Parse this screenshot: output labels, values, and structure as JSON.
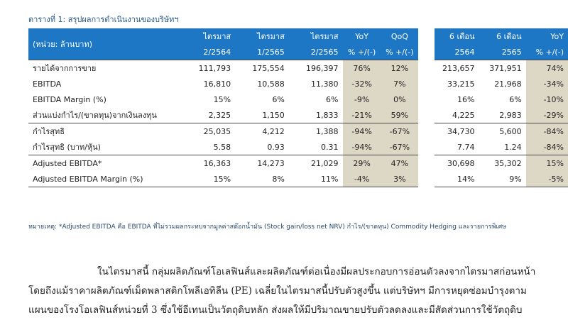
{
  "table_title": "ตารางที่ 1: สรุปผลการดำเนินงานของบริษัทฯ",
  "header": {
    "unit_label": "(หน่วย: ล้านบาท)",
    "columns": [
      {
        "top": "ไตรมาส",
        "bottom": "2/2564"
      },
      {
        "top": "ไตรมาส",
        "bottom": "1/2565"
      },
      {
        "top": "ไตรมาส",
        "bottom": "2/2565"
      },
      {
        "top": "YoY",
        "bottom": "% +/(-)"
      },
      {
        "top": "QoQ",
        "bottom": "% +/(-)"
      },
      {
        "top": "6 เดือน",
        "bottom": "2564"
      },
      {
        "top": "6 เดือน",
        "bottom": "2565"
      },
      {
        "top": "YoY",
        "bottom": "% +/(-)"
      }
    ]
  },
  "rows": [
    {
      "label": "รายได้จากการขาย",
      "values": [
        "111,793",
        "175,554",
        "196,397",
        "76%",
        "12%",
        "213,657",
        "371,951",
        "74%"
      ]
    },
    {
      "label": "EBITDA",
      "values": [
        "16,810",
        "10,588",
        "11,380",
        "-32%",
        "7%",
        "33,215",
        "21,968",
        "-34%"
      ]
    },
    {
      "label": "EBITDA Margin (%)",
      "values": [
        "15%",
        "6%",
        "6%",
        "-9%",
        "0%",
        "16%",
        "6%",
        "-10%"
      ]
    },
    {
      "label": "ส่วนแบ่งกำไร/(ขาดทุน)จากเงินลงทุน",
      "values": [
        "2,325",
        "1,150",
        "1,833",
        "-21%",
        "59%",
        "4,225",
        "2,983",
        "-29%"
      ]
    },
    {
      "label": "กำไรสุทธิ",
      "values": [
        "25,035",
        "4,212",
        "1,388",
        "-94%",
        "-67%",
        "34,730",
        "5,600",
        "-84%"
      ]
    },
    {
      "label": "กำไรสุทธิ (บาท/หุ้น)",
      "values": [
        "5.58",
        "0.93",
        "0.31",
        "-94%",
        "-67%",
        "7.74",
        "1.24",
        "-84%"
      ]
    },
    {
      "label": "Adjusted EBITDA*",
      "values": [
        "16,363",
        "14,273",
        "21,029",
        "29%",
        "47%",
        "30,698",
        "35,302",
        "15%"
      ]
    },
    {
      "label": "Adjusted EBITDA Margin (%)",
      "values": [
        "15%",
        "8%",
        "11%",
        "-4%",
        "3%",
        "14%",
        "9%",
        "-5%"
      ]
    }
  ],
  "footnote": "หมายเหตุ: *Adjusted EBITDA คือ EBITDA ที่ไม่รวมผลกระทบจากมูลค่าสต๊อกน้ำมัน (Stock gain/loss net NRV) กำไร/(ขาดทุน) Commodity Hedging และรายการพิเศษ",
  "paragraph_lines": [
    "ในไตรมาสนี้ กลุ่มผลิตภัณฑ์โอเลฟินส์และผลิตภัณฑ์ต่อเนื่องมีผลประกอบการอ่อนตัวลงจากไตรมาสก่อนหน้า",
    "โดยถึงแม้ราคาผลิตภัณฑ์เม็ดพลาสติกโพลีเอทิลีน (PE) เฉลี่ยในไตรมาสนี้ปรับตัวสูงขึ้น แต่บริษัทฯ มีการหยุดซ่อมบำรุงตาม",
    "แผนของโรงโอเลฟินส์หน่วยที่ 3 ซึ่งใช้อีเทนเป็นวัตถุดิบหลัก ส่งผลให้มีปริมาณขายปรับตัวลดลงและมีสัดส่วนการใช้วัตถุดิบ"
  ]
}
